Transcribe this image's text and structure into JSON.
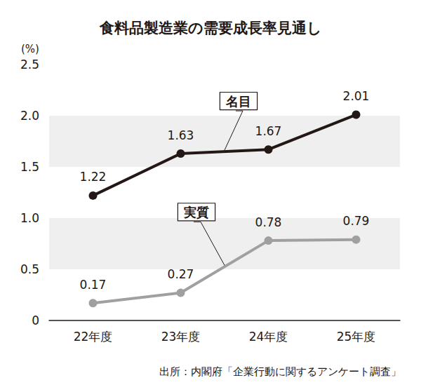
{
  "chart_data": {
    "type": "line",
    "title": "食料品製造業の需要成長率見通し",
    "y_label": "(%)",
    "source": "出所：内閣府「企業行動に関するアンケート調査」",
    "categories": [
      "22年度",
      "23年度",
      "24年度",
      "25年度"
    ],
    "series": [
      {
        "name": "名目",
        "color": "#231815",
        "values": [
          1.22,
          1.63,
          1.67,
          2.01
        ]
      },
      {
        "name": "実質",
        "color": "#a0a0a0",
        "values": [
          0.17,
          0.27,
          0.78,
          0.79
        ]
      }
    ],
    "ylim": [
      0,
      2.5
    ],
    "yticks": [
      0,
      0.5,
      {
        "value": 1,
        "label": "1.0"
      },
      1.5,
      {
        "value": 2,
        "label": "2.0"
      },
      2.5
    ],
    "grid": true,
    "data_labels": true,
    "marker": "circle"
  }
}
